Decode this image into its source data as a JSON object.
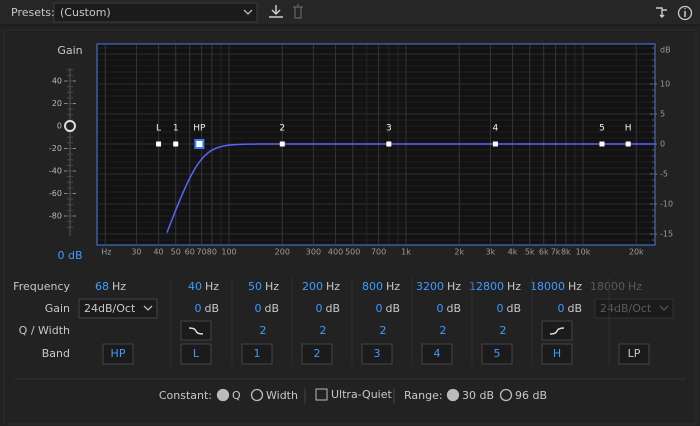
{
  "toolbar": {
    "presets_label": "Presets:",
    "preset": "(Custom)"
  },
  "graph": {
    "gain_label": "Gain",
    "gain_ticks": [
      40,
      20,
      0,
      -20,
      -40,
      -60,
      -80
    ],
    "master_gain": "0 dB",
    "db_label": "dB",
    "db_ticks": [
      10,
      5,
      0,
      -5,
      -10,
      -15
    ],
    "freq_ticks": [
      {
        "value": 20,
        "label": "Hz"
      },
      30,
      40,
      50,
      60,
      70,
      80,
      100,
      200,
      300,
      400,
      500,
      700,
      {
        "value": 1000,
        "label": "1k"
      },
      {
        "value": 2000,
        "label": "2k"
      },
      {
        "value": 3000,
        "label": "3k"
      },
      {
        "value": 4000,
        "label": "4k"
      },
      {
        "value": 5000,
        "label": "5k"
      },
      {
        "value": 6000,
        "label": "6k"
      },
      {
        "value": 7000,
        "label": "7k"
      },
      {
        "value": 8000,
        "label": "8k"
      },
      {
        "value": 10000,
        "label": "10k"
      },
      {
        "value": 20000,
        "label": "20k"
      }
    ]
  },
  "controls": {
    "row_labels": {
      "frequency": "Frequency",
      "gain": "Gain",
      "q_width": "Q / Width",
      "band": "Band"
    },
    "bands": [
      {
        "name": "HP",
        "frequency": 68,
        "unit": "Hz",
        "slope": "24dB/Oct",
        "selected": true
      },
      {
        "name": "L",
        "frequency": 40,
        "unit": "Hz",
        "gain": 0,
        "gain_unit": "dB"
      },
      {
        "name": "1",
        "frequency": 50,
        "unit": "Hz",
        "gain": 0,
        "gain_unit": "dB",
        "q": 2
      },
      {
        "name": "2",
        "frequency": 200,
        "unit": "Hz",
        "gain": 0,
        "gain_unit": "dB",
        "q": 2
      },
      {
        "name": "3",
        "frequency": 800,
        "unit": "Hz",
        "gain": 0,
        "gain_unit": "dB",
        "q": 2
      },
      {
        "name": "4",
        "frequency": 3200,
        "unit": "Hz",
        "gain": 0,
        "gain_unit": "dB",
        "q": 2
      },
      {
        "name": "5",
        "frequency": 12800,
        "unit": "Hz",
        "gain": 0,
        "gain_unit": "dB",
        "q": 2
      },
      {
        "name": "H",
        "frequency": 18000,
        "unit": "Hz",
        "gain": 0,
        "gain_unit": "dB"
      },
      {
        "name": "LP",
        "frequency": 18000,
        "unit": "Hz",
        "slope": "24dB/Oct",
        "disabled": true
      }
    ]
  },
  "footer": {
    "constant_label": "Constant:",
    "constant_options": [
      "Q",
      "Width"
    ],
    "constant_selected": 0,
    "ultra_quiet_label": "Ultra-Quiet",
    "ultra_quiet": false,
    "range_label": "Range:",
    "range_options": [
      "30 dB",
      "96 dB"
    ],
    "range_selected": 0
  }
}
